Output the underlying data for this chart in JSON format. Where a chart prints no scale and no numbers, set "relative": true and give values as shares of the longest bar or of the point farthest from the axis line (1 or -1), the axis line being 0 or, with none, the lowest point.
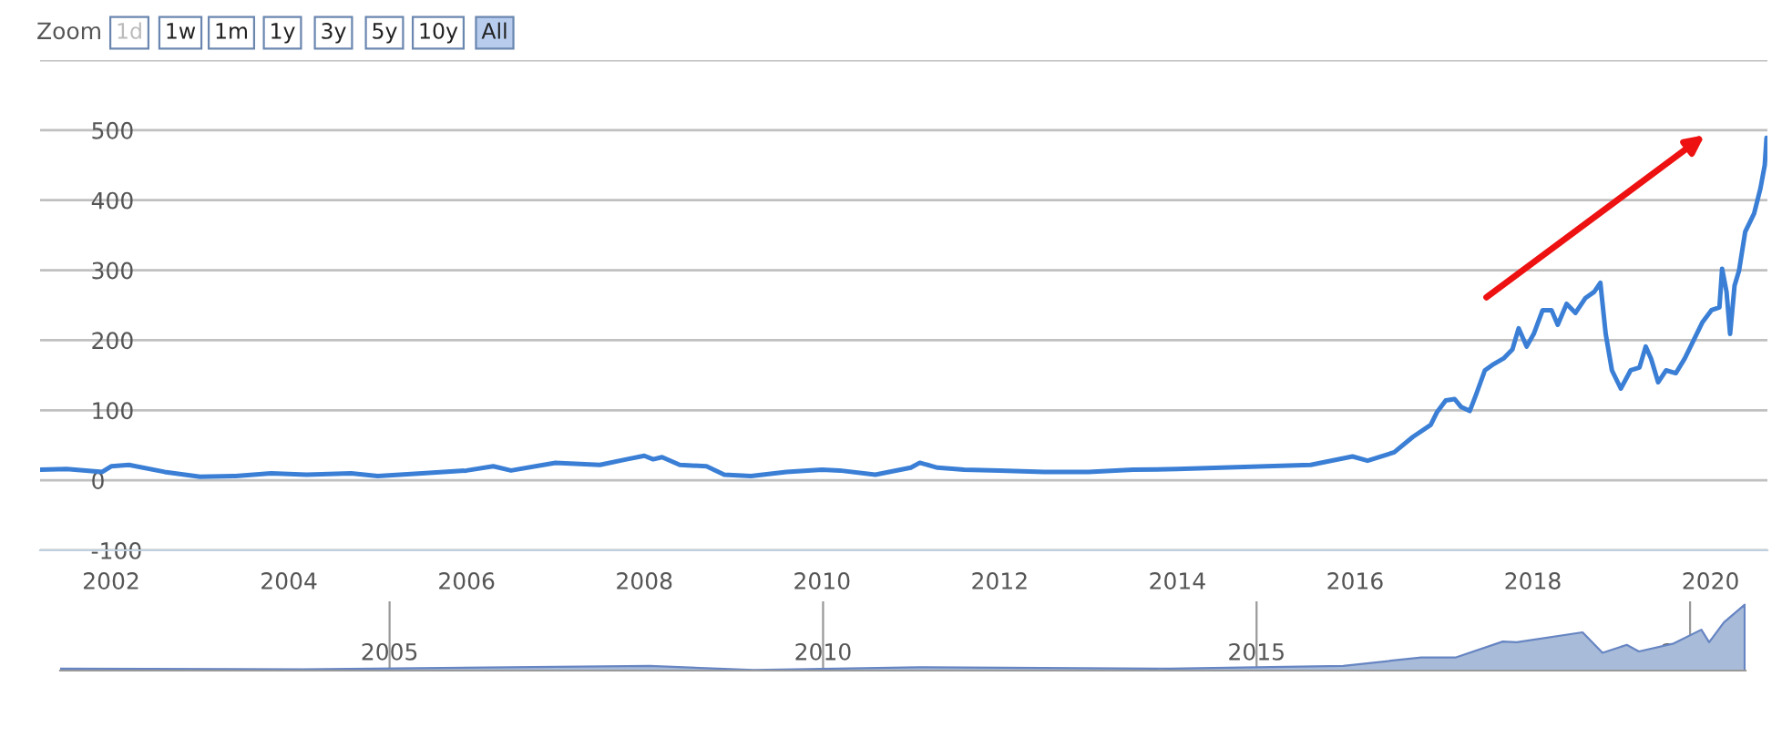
{
  "chart_data": [
    {
      "type": "line",
      "annotations": [
        "Zoom",
        "1d",
        "1w",
        "1m",
        "1y",
        "3y",
        "5y",
        "10y",
        "All"
      ],
      "x": [
        2001.2,
        2001.5,
        2001.9,
        2002.0,
        2002.2,
        2002.6,
        2003.0,
        2003.4,
        2003.8,
        2004.2,
        2004.7,
        2005.0,
        2005.5,
        2006.0,
        2006.3,
        2006.5,
        2007.0,
        2007.5,
        2007.8,
        2008.0,
        2008.1,
        2008.2,
        2008.4,
        2008.7,
        2008.9,
        2009.2,
        2009.6,
        2010.0,
        2010.2,
        2010.6,
        2011.0,
        2011.1,
        2011.3,
        2011.6,
        2012.0,
        2012.5,
        2013.0,
        2013.5,
        2014.0,
        2014.5,
        2015.0,
        2015.5,
        2015.97,
        2016.14,
        2016.44,
        2016.65,
        2016.85,
        2016.92,
        2017.02,
        2017.12,
        2017.19,
        2017.29,
        2017.36,
        2017.46,
        2017.56,
        2017.67,
        2017.77,
        2017.84,
        2017.93,
        2018.01,
        2018.11,
        2018.21,
        2018.28,
        2018.38,
        2018.48,
        2018.59,
        2018.69,
        2018.76,
        2018.82,
        2018.89,
        2018.99,
        2019.1,
        2019.2,
        2019.27,
        2019.33,
        2019.41,
        2019.5,
        2019.61,
        2019.71,
        2019.81,
        2019.91,
        2020.01,
        2020.1,
        2020.13,
        2020.18,
        2020.22,
        2020.27,
        2020.32,
        2020.39,
        2020.49,
        2020.56,
        2020.61,
        2020.63
      ],
      "series": [
        {
          "color": "#3a7fd5",
          "values": [
            15,
            16,
            12,
            20,
            22,
            12,
            5,
            6,
            10,
            8,
            10,
            6,
            10,
            14,
            20,
            14,
            25,
            22,
            30,
            35,
            30,
            33,
            22,
            20,
            8,
            6,
            12,
            15,
            14,
            8,
            18,
            25,
            18,
            15,
            14,
            12,
            12,
            15,
            16,
            18,
            20,
            22,
            34,
            28,
            40,
            62,
            79,
            97,
            114,
            116,
            105,
            99,
            122,
            157,
            166,
            174,
            187,
            217,
            191,
            209,
            243,
            243,
            222,
            252,
            239,
            260,
            269,
            282,
            209,
            157,
            131,
            157,
            161,
            191,
            174,
            140,
            157,
            153,
            174,
            200,
            226,
            243,
            247,
            302,
            269,
            209,
            278,
            299,
            355,
            381,
            416,
            450,
            489
          ]
        }
      ],
      "xlim": [
        2001.2,
        2020.64
      ],
      "xticks": [
        2002,
        2004,
        2006,
        2008,
        2010,
        2012,
        2014,
        2016,
        2018,
        2020
      ],
      "ylim": [
        -100,
        600
      ],
      "yticks": [
        -100,
        0,
        100,
        200,
        300,
        400,
        500,
        {
          "value": 600,
          "label": null
        }
      ],
      "grid": "y",
      "legend": false,
      "marker": "none",
      "line_style": "solid"
    },
    {
      "type": "area",
      "relative": true,
      "x": [
        2001.2,
        2004.0,
        2008.0,
        2009.2,
        2011.1,
        2014.0,
        2016.0,
        2016.9,
        2017.3,
        2017.84,
        2018.0,
        2018.76,
        2018.99,
        2019.27,
        2019.41,
        2019.81,
        2020.13,
        2020.22,
        2020.39,
        2020.63
      ],
      "series": [
        {
          "color": "#a8bbd8",
          "values": [
            0.03,
            0.02,
            0.07,
            0.01,
            0.05,
            0.03,
            0.07,
            0.2,
            0.2,
            0.44,
            0.43,
            0.58,
            0.27,
            0.39,
            0.29,
            0.41,
            0.62,
            0.43,
            0.73,
            1
          ]
        }
      ],
      "xlim": [
        2001.2,
        2020.64
      ],
      "xticks": [
        2005,
        2010,
        2015,
        2020
      ],
      "grid": "x",
      "legend": false
    }
  ]
}
